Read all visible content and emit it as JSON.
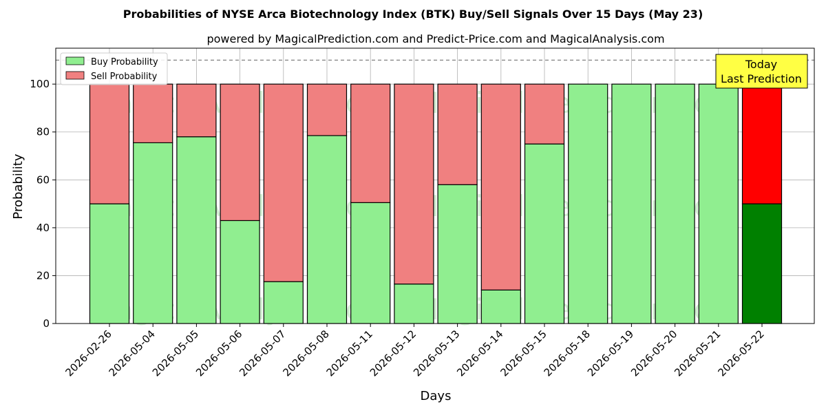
{
  "chart_data": {
    "type": "bar",
    "stacked": true,
    "title": "Probabilities of NYSE Arca Biotechnology Index (BTK) Buy/Sell Signals Over 15 Days (May 23)",
    "subtitle": "powered by MagicalPrediction.com and Predict-Price.com and MagicalAnalysis.com",
    "xlabel": "Days",
    "ylabel": "Probability",
    "ylim": [
      0,
      115
    ],
    "yticks": [
      0,
      20,
      40,
      60,
      80,
      100
    ],
    "reference_line": 110,
    "grid": true,
    "legend_position": "top-left",
    "categories": [
      "2026-02-26",
      "2026-05-04",
      "2026-05-05",
      "2026-05-06",
      "2026-05-07",
      "2026-05-08",
      "2026-05-11",
      "2026-05-12",
      "2026-05-13",
      "2026-05-14",
      "2026-05-15",
      "2026-05-18",
      "2026-05-19",
      "2026-05-20",
      "2026-05-21",
      "2026-05-22"
    ],
    "series": [
      {
        "name": "Buy Probability",
        "color": "#90ee90",
        "highlight_color": "#008000",
        "values": [
          50,
          75.5,
          78,
          43,
          17.5,
          78.5,
          50.5,
          16.5,
          58,
          14,
          75,
          100,
          100,
          100,
          100,
          50
        ]
      },
      {
        "name": "Sell Probability",
        "color": "#f08080",
        "highlight_color": "#ff0000",
        "values": [
          50,
          24.5,
          22,
          57,
          82.5,
          21.5,
          49.5,
          83.5,
          42,
          86,
          25,
          0,
          0,
          0,
          0,
          50
        ]
      }
    ],
    "highlight_index": 15,
    "annotation": {
      "line1": "Today",
      "line2": "Last Prediction",
      "background": "#ffff44"
    },
    "watermarks": [
      "MagicalAnalysis.com",
      "MagicalPrediction.com"
    ]
  }
}
